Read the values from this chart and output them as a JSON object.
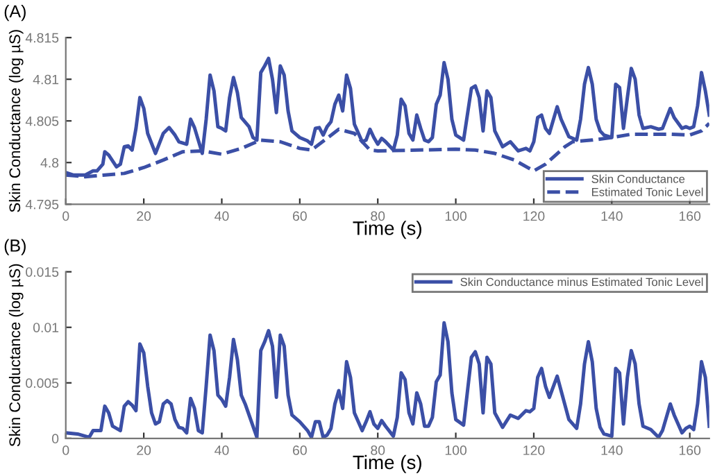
{
  "chart_data": [
    {
      "type": "line",
      "title": "(A)",
      "xlabel": "Time (s)",
      "ylabel": "Skin Conductance (log µS)",
      "xlim": [
        0,
        165
      ],
      "ylim": [
        4.795,
        4.815
      ],
      "xticks": [
        0,
        20,
        40,
        60,
        80,
        100,
        120,
        140,
        160
      ],
      "yticks": [
        4.795,
        4.8,
        4.805,
        4.81,
        4.815
      ],
      "grid": false,
      "legend": "bottom right",
      "marker": "none",
      "series": [
        {
          "name": "Skin Conductance",
          "color": "#3b4fa6",
          "line_style": "solid",
          "x": [
            0,
            2,
            5,
            7,
            8,
            9.5,
            10,
            11,
            13,
            14,
            15,
            16,
            17,
            18,
            19,
            20,
            21,
            23,
            25,
            26.5,
            28,
            29,
            31,
            32,
            33,
            35,
            36,
            37,
            38,
            39,
            40,
            41,
            42,
            43,
            44,
            45,
            47,
            48,
            49,
            50,
            51,
            52,
            53,
            54,
            55,
            56,
            57,
            58,
            60,
            62,
            63,
            64,
            65,
            66,
            67,
            68,
            69,
            70,
            71,
            72,
            73,
            74,
            76,
            77,
            78,
            79,
            80,
            81,
            82,
            84,
            85,
            86,
            87,
            88,
            89,
            90,
            91,
            92,
            93,
            94,
            95,
            96,
            97,
            98,
            99,
            100,
            102,
            104,
            105,
            106,
            107,
            108,
            109,
            110,
            112,
            114,
            116,
            118,
            119,
            120,
            121,
            122,
            123,
            124,
            126,
            127,
            129,
            131,
            132,
            133,
            134,
            135,
            136,
            137,
            138,
            140,
            141,
            142,
            143,
            144,
            145,
            146,
            147,
            148,
            150,
            152,
            153,
            155,
            156,
            158,
            159,
            160,
            161,
            162,
            163,
            164,
            165
          ],
          "values": [
            4.7988,
            4.7985,
            4.7985,
            4.799,
            4.799,
            4.7998,
            4.8013,
            4.8009,
            4.7995,
            4.7998,
            4.8019,
            4.802,
            4.8015,
            4.8041,
            4.8078,
            4.8065,
            4.8035,
            4.8011,
            4.8035,
            4.8042,
            4.8033,
            4.8025,
            4.8022,
            4.8052,
            4.8042,
            4.8011,
            4.8052,
            4.8105,
            4.8086,
            4.8043,
            4.8041,
            4.8038,
            4.8078,
            4.8102,
            4.8084,
            4.8054,
            4.8043,
            4.803,
            4.8027,
            4.8108,
            4.8116,
            4.8125,
            4.81,
            4.806,
            4.8116,
            4.8105,
            4.8062,
            4.8038,
            4.803,
            4.8026,
            4.8022,
            4.8041,
            4.8042,
            4.8033,
            4.8043,
            4.8049,
            4.807,
            4.8081,
            4.8062,
            4.8105,
            4.8089,
            4.8046,
            4.8025,
            4.8027,
            4.804,
            4.803,
            4.8022,
            4.8029,
            4.8025,
            4.8015,
            4.8033,
            4.8076,
            4.8068,
            4.8035,
            4.8027,
            4.8057,
            4.8041,
            4.8027,
            4.8025,
            4.803,
            4.807,
            4.8081,
            4.812,
            4.81,
            4.8052,
            4.8033,
            4.8027,
            4.8089,
            4.8092,
            4.8078,
            4.8038,
            4.8086,
            4.8078,
            4.8038,
            4.8019,
            4.8025,
            4.8014,
            4.8017,
            4.8014,
            4.8025,
            4.8054,
            4.8057,
            4.8041,
            4.8035,
            4.8067,
            4.8052,
            4.8031,
            4.8027,
            4.8052,
            4.8094,
            4.8114,
            4.8094,
            4.8052,
            4.8038,
            4.8033,
            4.803,
            4.8094,
            4.809,
            4.8041,
            4.8078,
            4.8113,
            4.81,
            4.8057,
            4.8041,
            4.8043,
            4.804,
            4.8041,
            4.8065,
            4.8054,
            4.8041,
            4.8043,
            4.8041,
            4.8043,
            4.8068,
            4.8108,
            4.8086,
            4.8057
          ]
        },
        {
          "name": "Estimated Tonic Level",
          "color": "#3b4fa6",
          "line_style": "dashed",
          "x": [
            0,
            5,
            10,
            15,
            20,
            25,
            30,
            35,
            40,
            45,
            50,
            55,
            60,
            63,
            65,
            70,
            74,
            78,
            80,
            90,
            100,
            105,
            110,
            115,
            120,
            123,
            128,
            130,
            135,
            140,
            145,
            150,
            155,
            160,
            163,
            165
          ],
          "values": [
            4.7985,
            4.7983,
            4.7985,
            4.7987,
            4.7994,
            4.8003,
            4.8013,
            4.8014,
            4.801,
            4.8017,
            4.8027,
            4.8025,
            4.8017,
            4.8015,
            4.8022,
            4.804,
            4.8035,
            4.8015,
            4.8014,
            4.8015,
            4.8016,
            4.8015,
            4.8011,
            4.8003,
            4.799,
            4.7998,
            4.8019,
            4.8025,
            4.8027,
            4.803,
            4.8034,
            4.8034,
            4.8034,
            4.8033,
            4.8038,
            4.8047
          ]
        }
      ]
    },
    {
      "type": "line",
      "title": "(B)",
      "xlabel": "Time (s)",
      "ylabel": "Skin Conductance (log µS)",
      "xlim": [
        0,
        165
      ],
      "ylim": [
        0,
        0.015
      ],
      "xticks": [
        0,
        20,
        40,
        60,
        80,
        100,
        120,
        140,
        160
      ],
      "yticks": [
        0,
        0.005,
        0.01,
        0.015
      ],
      "grid": false,
      "legend": "top right",
      "marker": "none",
      "series": [
        {
          "name": "Skin Conductance minus Estimated Tonic Level",
          "color": "#3b4fa6",
          "line_style": "solid",
          "x": [
            0,
            3,
            5,
            6,
            7,
            9,
            10,
            11,
            12,
            14,
            15,
            16,
            17,
            18,
            19,
            20,
            21,
            22,
            23,
            24,
            25,
            26,
            27,
            28,
            29,
            30,
            31,
            32,
            33,
            34,
            35,
            36,
            37,
            38,
            39,
            40,
            41,
            42,
            43,
            44,
            45,
            46,
            47,
            48,
            49,
            50,
            51,
            52,
            53,
            54,
            55,
            56,
            57,
            58,
            60,
            62,
            63,
            64,
            65,
            66,
            67,
            68,
            69,
            70,
            71,
            72,
            73,
            74,
            76,
            77,
            78,
            79,
            80,
            81,
            82,
            84,
            85,
            86,
            87,
            88,
            89,
            90,
            91,
            92,
            93,
            94,
            95,
            96,
            97,
            98,
            99,
            100,
            102,
            104,
            105,
            106,
            107,
            108,
            109,
            110,
            112,
            114,
            116,
            118,
            119,
            120,
            121,
            122,
            123,
            124,
            126,
            127,
            129,
            131,
            132,
            133,
            134,
            135,
            136,
            137,
            138,
            140,
            141,
            142,
            143,
            144,
            145,
            146,
            147,
            148,
            150,
            152,
            153,
            155,
            156,
            158,
            159,
            160,
            161,
            162,
            163,
            164,
            165
          ],
          "values": [
            0.0005,
            0.0004,
            0.0002,
            0.0001,
            0.0007,
            0.0007,
            0.0029,
            0.0023,
            0.0011,
            0.0007,
            0.0029,
            0.0033,
            0.003,
            0.0025,
            0.0085,
            0.0077,
            0.0047,
            0.0023,
            0.0013,
            0.0015,
            0.0031,
            0.0034,
            0.0031,
            0.0017,
            0.001,
            0.0009,
            0.0005,
            0.0036,
            0.0027,
            0.0007,
            0.0005,
            0.0047,
            0.0093,
            0.0079,
            0.0039,
            0.0035,
            0.0029,
            0.0055,
            0.0089,
            0.0071,
            0.0039,
            0.0031,
            0.0021,
            0.0011,
            0.0001,
            0.0079,
            0.0087,
            0.0097,
            0.0083,
            0.0037,
            0.0093,
            0.0083,
            0.0039,
            0.0021,
            0.0015,
            0.0007,
            0.0001,
            0.0015,
            0.0015,
            0.0001,
            0.0003,
            0.0009,
            0.0031,
            0.0043,
            0.0027,
            0.0069,
            0.0055,
            0.0023,
            0.0007,
            0.0015,
            0.0024,
            0.0013,
            0.0009,
            0.0016,
            0.0011,
            0.0002,
            0.0019,
            0.0059,
            0.0053,
            0.0023,
            0.0013,
            0.0041,
            0.0031,
            0.0011,
            0.0011,
            0.0019,
            0.0051,
            0.0057,
            0.0104,
            0.0087,
            0.0041,
            0.0017,
            0.0012,
            0.0073,
            0.0078,
            0.0067,
            0.0023,
            0.0073,
            0.0067,
            0.0023,
            0.001,
            0.0021,
            0.0018,
            0.0025,
            0.0024,
            0.0027,
            0.0055,
            0.0063,
            0.0047,
            0.0037,
            0.0056,
            0.0043,
            0.0017,
            0.0009,
            0.0031,
            0.0067,
            0.0087,
            0.0069,
            0.0027,
            0.001,
            0.0004,
            0.0002,
            0.0063,
            0.0059,
            0.0013,
            0.0055,
            0.0079,
            0.0067,
            0.0031,
            0.0011,
            0.0008,
            0.0001,
            0.0007,
            0.0031,
            0.0021,
            0.0005,
            0.0009,
            0.0011,
            0.0008,
            0.0031,
            0.0069,
            0.0055,
            0.0011
          ]
        }
      ]
    }
  ]
}
